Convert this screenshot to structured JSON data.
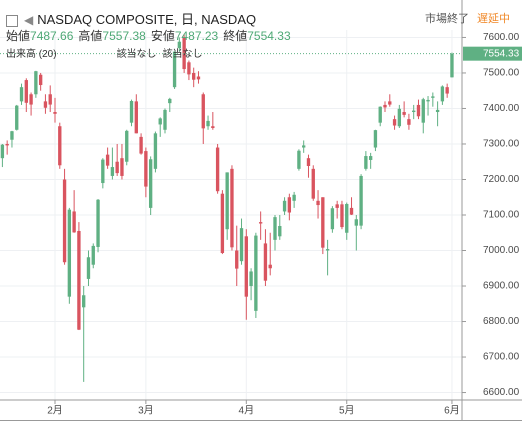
{
  "chart_data": {
    "type": "candlestick",
    "title": "NASDAQ COMPOSITE, 日, NASDAQ",
    "status": "市場終了",
    "delay": "遅延中",
    "ohlc_labels": [
      "始値",
      "高値",
      "安値",
      "終値"
    ],
    "volume_label": "出来高 (20)",
    "na_labels": [
      "該当なし",
      "該当なし"
    ],
    "up_color": "#5fb083",
    "down_color": "#d9545f",
    "x": [
      0,
      1,
      2,
      3,
      4,
      5,
      6,
      7,
      8,
      9,
      10,
      11,
      12,
      13,
      14,
      15,
      16,
      17,
      18,
      19,
      20,
      21,
      22,
      23,
      24,
      25,
      26,
      27,
      28,
      29,
      30,
      31,
      32,
      33,
      34,
      35,
      36,
      37,
      38,
      39,
      40,
      41,
      42,
      43,
      44,
      45,
      46,
      47,
      48,
      49,
      50,
      51,
      52,
      53,
      54,
      55,
      56,
      57,
      58,
      59,
      60,
      61,
      62,
      63,
      64,
      65,
      66,
      67,
      68,
      69,
      70,
      71,
      72,
      73,
      74,
      75,
      76,
      77,
      78,
      79,
      80,
      81,
      82,
      83,
      84,
      85,
      86,
      87,
      88,
      89,
      90,
      91,
      92,
      93,
      94
    ],
    "open": [
      7260,
      7300,
      7312,
      7340,
      7420,
      7480,
      7440,
      7440,
      7495,
      7420,
      7440,
      7390,
      7350,
      7200,
      6870,
      7110,
      7055,
      6840,
      6920,
      6960,
      7010,
      7190,
      7270,
      7210,
      7250,
      7260,
      7250,
      7360,
      7420,
      7320,
      7280,
      7120,
      7230,
      7355,
      7340,
      7415,
      7460,
      7570,
      7600,
      7530,
      7500,
      7490,
      7440,
      7350,
      7350,
      7290,
      7160,
      7060,
      7230,
      7000,
      6970,
      7040,
      6900,
      6830,
      7080,
      7020,
      6960,
      7030,
      7040,
      7110,
      7150,
      7140,
      7230,
      7290,
      7260,
      7230,
      7140,
      7150,
      7000,
      7060,
      7130,
      7130,
      7050,
      7120,
      7070,
      7070,
      7230,
      7255,
      7290,
      7360,
      7410,
      7420,
      7370,
      7350,
      7390,
      7370,
      7390,
      7410,
      7360,
      7420,
      7430,
      7390,
      7420,
      7460,
      7487.66
    ],
    "high": [
      7300,
      7310,
      7337,
      7410,
      7470,
      7485,
      7445,
      7506,
      7500,
      7440,
      7465,
      7430,
      7360,
      7230,
      7120,
      7170,
      7080,
      6900,
      7000,
      7020,
      7145,
      7260,
      7290,
      7290,
      7300,
      7300,
      7340,
      7425,
      7440,
      7330,
      7290,
      7265,
      7335,
      7375,
      7400,
      7430,
      7561,
      7600,
      7610,
      7535,
      7515,
      7505,
      7445,
      7380,
      7390,
      7300,
      7170,
      7220,
      7240,
      7070,
      7090,
      7060,
      6950,
      7050,
      7110,
      7060,
      7050,
      7100,
      7100,
      7150,
      7160,
      7165,
      7285,
      7310,
      7270,
      7240,
      7170,
      7150,
      7030,
      7125,
      7140,
      7140,
      7135,
      7150,
      7100,
      7215,
      7280,
      7275,
      7340,
      7406,
      7420,
      7440,
      7380,
      7410,
      7420,
      7385,
      7410,
      7425,
      7430,
      7435,
      7445,
      7420,
      7465,
      7470,
      7557.38
    ],
    "low": [
      7235,
      7270,
      7290,
      7338,
      7410,
      7390,
      7380,
      7430,
      7450,
      7385,
      7390,
      7360,
      7230,
      6960,
      6850,
      7050,
      6776,
      6630,
      6900,
      6950,
      6995,
      7175,
      7230,
      7200,
      7210,
      7200,
      7240,
      7350,
      7330,
      7270,
      7150,
      7100,
      7220,
      7320,
      7330,
      7390,
      7455,
      7560,
      7500,
      7480,
      7460,
      7470,
      7300,
      7340,
      7340,
      7160,
      6990,
      7030,
      7000,
      6900,
      6960,
      6805,
      6860,
      6810,
      7030,
      6900,
      6930,
      7000,
      7030,
      7100,
      7085,
      7120,
      7225,
      7275,
      7205,
      7140,
      7090,
      6990,
      6930,
      7050,
      7090,
      7060,
      7030,
      7100,
      7000,
      7060,
      7225,
      7230,
      7280,
      7350,
      7390,
      7405,
      7340,
      7345,
      7375,
      7340,
      7370,
      7370,
      7330,
      7380,
      7405,
      7350,
      7410,
      7430,
      7487.23
    ],
    "close": [
      7298,
      7296,
      7336,
      7408,
      7460,
      7416,
      7411,
      7505,
      7466,
      7402,
      7411,
      7385,
      7240,
      6967,
      7115,
      7051,
      6777,
      6874,
      6981,
      7013,
      7143,
      7256,
      7239,
      7235,
      7218,
      7210,
      7337,
      7421,
      7330,
      7273,
      7180,
      7257,
      7330,
      7372,
      7396,
      7427,
      7560,
      7588,
      7511,
      7496,
      7481,
      7482,
      7344,
      7365,
      7345,
      7167,
      6993,
      7220,
      7009,
      6949,
      7063,
      6870,
      6941,
      7042,
      7076,
      6915,
      6950,
      7094,
      7069,
      7140,
      7107,
      7157,
      7281,
      7296,
      7238,
      7146,
      7128,
      7008,
      7004,
      7119,
      7120,
      7066,
      7131,
      7101,
      7088,
      7210,
      7266,
      7266,
      7339,
      7405,
      7403,
      7411,
      7352,
      7399,
      7382,
      7354,
      7394,
      7378,
      7426,
      7424,
      7434,
      7396,
      7462,
      7442,
      7554.33
    ],
    "xlim": [
      -0.5,
      96.1
    ],
    "xticks": [
      {
        "value": 11,
        "label": "2月"
      },
      {
        "value": 30,
        "label": "3月"
      },
      {
        "value": 51,
        "label": "4月"
      },
      {
        "value": 72,
        "label": "5月"
      },
      {
        "value": 94,
        "label": "6月"
      }
    ],
    "ylim": [
      6579,
      7621
    ],
    "yticks": [
      {
        "value": 6600,
        "label": "6600.00"
      },
      {
        "value": 6700,
        "label": "6700.00"
      },
      {
        "value": 6800,
        "label": "6800.00"
      },
      {
        "value": 6900,
        "label": "6900.00"
      },
      {
        "value": 7000,
        "label": "7000.00"
      },
      {
        "value": 7100,
        "label": "7100.00"
      },
      {
        "value": 7200,
        "label": "7200.00"
      },
      {
        "value": 7300,
        "label": "7300.00"
      },
      {
        "value": 7400,
        "label": "7400.00"
      },
      {
        "value": 7500,
        "label": "7500.00"
      },
      {
        "value": 7600,
        "label": "7600.00"
      }
    ],
    "grid": true
  }
}
